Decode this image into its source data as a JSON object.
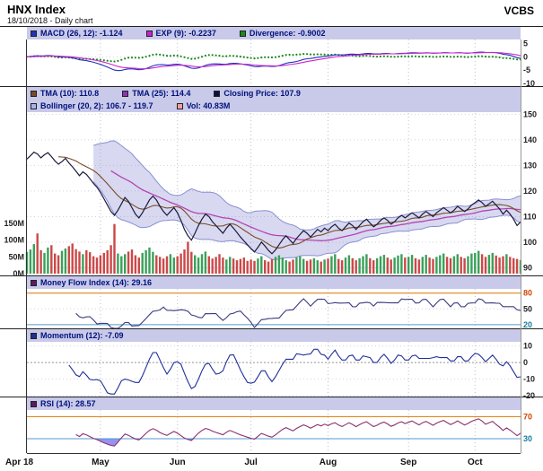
{
  "header": {
    "title": "HNX Index",
    "subtitle": "18/10/2018 - Daily chart",
    "brand": "VCBS"
  },
  "legends": {
    "macd": [
      {
        "name": "macd",
        "label": "MACD (26, 12): -1.124",
        "color": "#2233bb"
      },
      {
        "name": "exp",
        "label": "EXP (9): -0.2237",
        "color": "#cc22cc"
      },
      {
        "name": "divergence",
        "label": "Divergence: -0.9002",
        "color": "#1a8a1a"
      }
    ],
    "price_row1": [
      {
        "name": "tma10",
        "label": "TMA (10): 110.8",
        "color": "#7a4a28"
      },
      {
        "name": "tma25",
        "label": "TMA (25): 114.4",
        "color": "#8a36b0"
      },
      {
        "name": "close",
        "label": "Closing Price: 107.9",
        "color": "#101040"
      }
    ],
    "price_row2": [
      {
        "name": "bollinger",
        "label": "Bollinger (20, 2): 106.7 - 119.7",
        "color": "#aab0e8"
      },
      {
        "name": "vol",
        "label": "Vol: 40.83M",
        "color": "#f0a0a0"
      }
    ],
    "mfi": [
      {
        "name": "mfi",
        "label": "Money Flow Index (14): 29.16",
        "color": "#5c1a66"
      }
    ],
    "momentum": [
      {
        "name": "momentum",
        "label": "Momentum (12): -7.09",
        "color": "#1f2f99"
      }
    ],
    "rsi": [
      {
        "name": "rsi",
        "label": "RSI (14): 28.57",
        "color": "#5c1a66"
      }
    ]
  },
  "chart_data": {
    "type": "line",
    "title": "HNX Index",
    "subtitle": "18/10/2018 - Daily chart",
    "x_axis": {
      "labels": [
        {
          "i": 0,
          "t": "Apr 18"
        },
        {
          "i": 21,
          "t": "May"
        },
        {
          "i": 43,
          "t": "Jun"
        },
        {
          "i": 64,
          "t": "Jul"
        },
        {
          "i": 86,
          "t": "Aug"
        },
        {
          "i": 109,
          "t": "Sep"
        },
        {
          "i": 128,
          "t": "Oct"
        }
      ]
    },
    "indicators": {
      "macd": {
        "params": [
          26,
          12
        ],
        "value": -1.124
      },
      "exp": {
        "params": [
          9
        ],
        "value": -0.2237
      },
      "divergence": {
        "value": -0.9002
      },
      "tma10": {
        "value": 110.8
      },
      "tma25": {
        "value": 114.4
      },
      "closing_price": {
        "value": 107.9
      },
      "bollinger": {
        "params": [
          20,
          2
        ],
        "low": 106.7,
        "high": 119.7
      },
      "volume": {
        "value_m": 40.83
      },
      "mfi": {
        "params": [
          14
        ],
        "value": 29.16
      },
      "momentum": {
        "params": [
          12
        ],
        "value": -7.09
      },
      "rsi": {
        "params": [
          14
        ],
        "value": 28.57
      }
    },
    "close": [
      132.5,
      133.8,
      135.2,
      134.5,
      133.0,
      134.2,
      135.0,
      133.5,
      131.8,
      130.5,
      131.5,
      132.8,
      131.0,
      129.5,
      127.8,
      126.0,
      127.5,
      126.5,
      124.8,
      123.0,
      121.5,
      119.5,
      117.0,
      114.5,
      112.0,
      110.5,
      112.5,
      115.0,
      117.5,
      116.0,
      113.5,
      111.0,
      109.5,
      111.5,
      114.0,
      116.5,
      118.0,
      116.5,
      114.0,
      112.0,
      110.5,
      112.0,
      113.5,
      111.5,
      108.5,
      105.0,
      102.5,
      100.8,
      103.5,
      106.5,
      109.0,
      111.0,
      110.0,
      108.0,
      106.5,
      105.0,
      103.5,
      105.5,
      107.0,
      105.5,
      103.8,
      102.0,
      100.5,
      99.0,
      97.5,
      96.2,
      98.0,
      100.0,
      98.5,
      96.8,
      95.5,
      97.0,
      99.0,
      101.0,
      102.5,
      101.0,
      99.5,
      101.5,
      103.0,
      104.5,
      103.5,
      102.0,
      103.5,
      105.0,
      104.0,
      105.5,
      104.5,
      106.0,
      107.0,
      105.5,
      104.5,
      106.0,
      107.5,
      106.5,
      105.0,
      106.5,
      108.0,
      109.0,
      107.5,
      106.0,
      107.0,
      108.5,
      109.5,
      108.5,
      107.0,
      108.0,
      109.5,
      110.5,
      109.5,
      110.5,
      111.5,
      110.5,
      109.5,
      111.0,
      112.0,
      111.0,
      110.0,
      111.5,
      112.5,
      113.5,
      112.5,
      111.5,
      112.5,
      114.0,
      113.0,
      112.0,
      113.0,
      114.5,
      115.5,
      116.5,
      115.5,
      114.0,
      115.0,
      116.0,
      114.5,
      113.0,
      111.0,
      112.5,
      111.0,
      109.0,
      106.5,
      107.9
    ],
    "volume_m": [
      65,
      72,
      88,
      120,
      70,
      62,
      78,
      85,
      60,
      55,
      68,
      75,
      82,
      90,
      73,
      66,
      58,
      70,
      64,
      52,
      48,
      55,
      62,
      70,
      85,
      148,
      60,
      52,
      58,
      66,
      72,
      55,
      48,
      62,
      70,
      78,
      65,
      55,
      50,
      45,
      52,
      58,
      48,
      52,
      60,
      72,
      95,
      65,
      55,
      48,
      58,
      66,
      52,
      45,
      50,
      58,
      48,
      42,
      50,
      45,
      40,
      44,
      48,
      38,
      42,
      38,
      45,
      52,
      40,
      36,
      44,
      50,
      55,
      48,
      40,
      36,
      42,
      48,
      52,
      44,
      38,
      42,
      46,
      40,
      36,
      42,
      45,
      52,
      58,
      44,
      40,
      48,
      55,
      46,
      40,
      46,
      52,
      58,
      46,
      40,
      46,
      52,
      56,
      48,
      42,
      48,
      54,
      58,
      48,
      50,
      56,
      46,
      42,
      50,
      56,
      48,
      44,
      50,
      55,
      60,
      50,
      46,
      52,
      58,
      50,
      46,
      52,
      60,
      62,
      68,
      58,
      50,
      56,
      62,
      54,
      48,
      52,
      58,
      50,
      46,
      44,
      40.83
    ],
    "panels": {
      "macd": {
        "fast": 12,
        "slow": 26,
        "signal": 9,
        "range": [
          -11,
          6.5
        ],
        "ticks": [
          {
            "v": 5,
            "t": "5"
          },
          {
            "v": 0,
            "t": "0"
          },
          {
            "v": -5,
            "t": "-5"
          },
          {
            "v": -10,
            "t": "-10"
          }
        ]
      },
      "price": {
        "tma_fast": 10,
        "tma_slow": 25,
        "bollinger_n": 20,
        "bollinger_k": 2,
        "range": [
          87,
          150.5
        ],
        "ticks": [
          {
            "v": 150,
            "t": "150"
          },
          {
            "v": 140,
            "t": "140"
          },
          {
            "v": 130,
            "t": "130"
          },
          {
            "v": 120,
            "t": "120"
          },
          {
            "v": 110,
            "t": "110"
          },
          {
            "v": 100,
            "t": "100"
          },
          {
            "v": 90,
            "t": "90"
          }
        ],
        "volume_ticks": [
          {
            "v": 150,
            "t": "150M"
          },
          {
            "v": 100,
            "t": "100M"
          },
          {
            "v": 50,
            "t": "50M"
          },
          {
            "v": 0,
            "t": "0M"
          }
        ],
        "volume_max": 150
      },
      "mfi": {
        "period": 14,
        "upper": 80,
        "lower": 20,
        "range": [
          13,
          88
        ],
        "ticks": [
          {
            "v": 80,
            "t": "80",
            "c": "#cc4400"
          },
          {
            "v": 50,
            "t": "50"
          },
          {
            "v": 20,
            "t": "20",
            "c": "#1a7a99"
          }
        ]
      },
      "momentum": {
        "period": 12,
        "range": [
          -20.5,
          12.5
        ],
        "ticks": [
          {
            "v": 10,
            "t": "10"
          },
          {
            "v": 0,
            "t": "0"
          },
          {
            "v": -10,
            "t": "-10"
          },
          {
            "v": -20,
            "t": "-20"
          }
        ]
      },
      "rsi": {
        "period": 14,
        "upper": 70,
        "lower": 30,
        "range": [
          4,
          82
        ],
        "ticks": [
          {
            "v": 70,
            "t": "70",
            "c": "#cc4400"
          },
          {
            "v": 30,
            "t": "30",
            "c": "#1a7a99"
          }
        ]
      }
    },
    "colors": {
      "macd": "#2233bb",
      "exp": "#cc22cc",
      "divergence": "#1a8a1a",
      "tma10": "#7a4a28",
      "tma25": "#b344b3",
      "close": "#1a1a3c",
      "bollinger_fill": "rgba(125,130,205,0.30)",
      "bollinger_edge": "#8a8fd0",
      "vol_up": "#3aa05a",
      "vol_down": "#cc4848",
      "mfi": "#3a3a80",
      "momentum": "#1f2f99",
      "rsi": "#8a3070",
      "rsi_above": "rgba(230,40,40,0.65)",
      "rsi_below": "rgba(90,90,230,0.65)",
      "threshold_hi": "#dd7700",
      "threshold_lo": "#5599cc"
    }
  }
}
